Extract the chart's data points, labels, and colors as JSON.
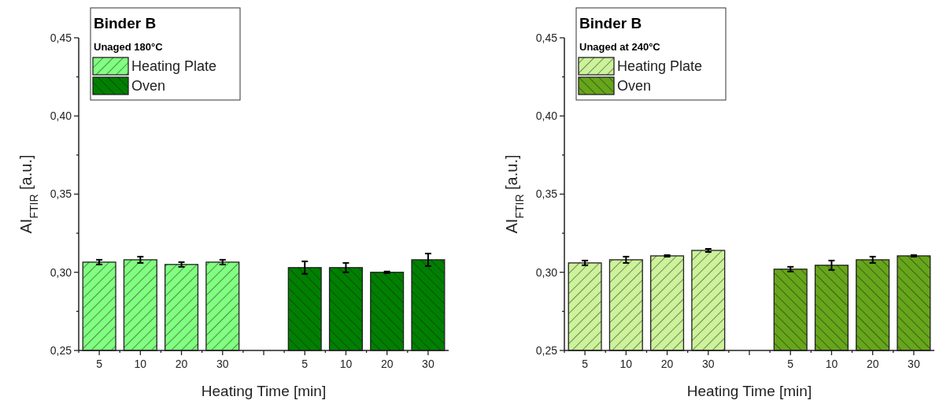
{
  "chart_data": [
    {
      "type": "bar",
      "title": "Binder B",
      "legend_title": "Unaged 180°C",
      "xlabel": "Heating Time [min]",
      "ylabel": "AI$_{FTIR}$ [a.u.]",
      "categories": [
        "5",
        "10",
        "20",
        "30",
        null,
        "5",
        "10",
        "20",
        "30"
      ],
      "series": [
        {
          "name": "Heating Plate",
          "color": "#80ff80",
          "values": [
            0.3065,
            0.308,
            0.305,
            0.3065,
            null,
            null,
            null,
            null,
            null
          ],
          "errors": [
            0.0015,
            0.002,
            0.0015,
            0.0015,
            null,
            null,
            null,
            null,
            null
          ]
        },
        {
          "name": "Oven",
          "color": "#008000",
          "values": [
            null,
            null,
            null,
            null,
            null,
            0.303,
            0.303,
            0.3,
            0.308
          ],
          "errors": [
            null,
            null,
            null,
            null,
            null,
            0.004,
            0.003,
            0.0005,
            0.004
          ]
        }
      ],
      "ylim": [
        0.25,
        0.45
      ],
      "yticks": [
        {
          "value": 0.25,
          "label": "0,25"
        },
        {
          "value": 0.275,
          "label": null
        },
        {
          "value": 0.3,
          "label": "0,30"
        },
        {
          "value": 0.325,
          "label": null
        },
        {
          "value": 0.35,
          "label": "0,35"
        },
        {
          "value": 0.375,
          "label": null
        },
        {
          "value": 0.4,
          "label": "0,40"
        },
        {
          "value": 0.425,
          "label": null
        },
        {
          "value": 0.45,
          "label": "0,45"
        }
      ],
      "legend": "top left"
    },
    {
      "type": "bar",
      "title": "Binder B",
      "legend_title": "Unaged at 240°C",
      "xlabel": "Heating Time [min]",
      "ylabel": "AI$_{FTIR}$ [a.u.]",
      "categories": [
        "5",
        "10",
        "20",
        "30",
        null,
        "5",
        "10",
        "20",
        "30"
      ],
      "series": [
        {
          "name": "Heating Plate",
          "color": "#ccf29a",
          "values": [
            0.306,
            0.308,
            0.3105,
            0.314,
            null,
            null,
            null,
            null,
            null
          ],
          "errors": [
            0.0015,
            0.002,
            0.0005,
            0.001,
            null,
            null,
            null,
            null,
            null
          ]
        },
        {
          "name": "Oven",
          "color": "#66a61a",
          "values": [
            null,
            null,
            null,
            null,
            null,
            0.302,
            0.3045,
            0.308,
            0.3105
          ],
          "errors": [
            null,
            null,
            null,
            null,
            null,
            0.0015,
            0.003,
            0.002,
            0.0005
          ]
        }
      ],
      "ylim": [
        0.25,
        0.45
      ],
      "yticks": [
        {
          "value": 0.25,
          "label": "0,25"
        },
        {
          "value": 0.275,
          "label": null
        },
        {
          "value": 0.3,
          "label": "0,30"
        },
        {
          "value": 0.325,
          "label": null
        },
        {
          "value": 0.35,
          "label": "0,35"
        },
        {
          "value": 0.375,
          "label": null
        },
        {
          "value": 0.4,
          "label": "0,40"
        },
        {
          "value": 0.425,
          "label": null
        },
        {
          "value": 0.45,
          "label": "0,45"
        }
      ],
      "legend": "top left"
    }
  ]
}
